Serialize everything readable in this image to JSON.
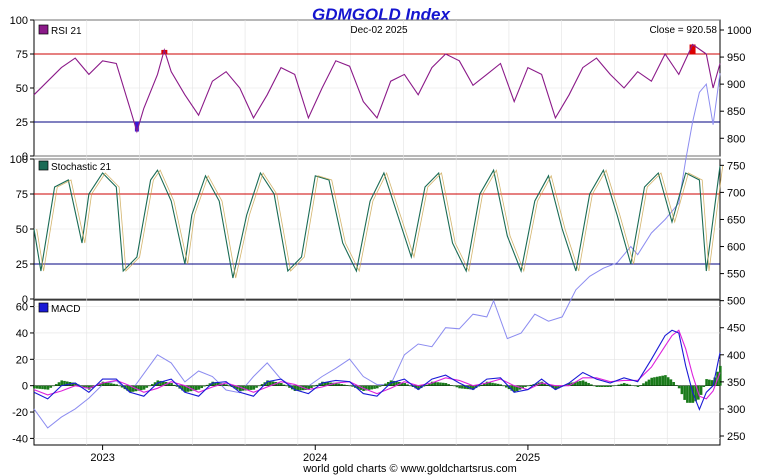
{
  "chart_data": {
    "type": "line",
    "title": "GDMGOLD Index",
    "date_label": "Dec-02  2025",
    "close_label": "Close = 920.58",
    "close_value": 920.58,
    "footer": "world gold charts © www.goldchartsrus.com",
    "x_labels": [
      "2023",
      "2024",
      "2025"
    ],
    "x_range": [
      "2022-09",
      "2025-12"
    ],
    "price": {
      "name": "GDMGOLD Index (right axis)",
      "color": "#8c8cf0",
      "y_ticks": [
        250,
        300,
        350,
        400,
        450,
        500,
        550,
        600,
        650,
        700,
        750,
        800,
        850,
        900,
        950,
        1000
      ],
      "y_range": [
        250,
        1000
      ],
      "points": [
        [
          0.0,
          300
        ],
        [
          0.02,
          265
        ],
        [
          0.04,
          285
        ],
        [
          0.06,
          300
        ],
        [
          0.08,
          320
        ],
        [
          0.1,
          345
        ],
        [
          0.12,
          352
        ],
        [
          0.14,
          330
        ],
        [
          0.16,
          365
        ],
        [
          0.18,
          400
        ],
        [
          0.2,
          385
        ],
        [
          0.22,
          350
        ],
        [
          0.24,
          370
        ],
        [
          0.26,
          360
        ],
        [
          0.28,
          335
        ],
        [
          0.3,
          330
        ],
        [
          0.32,
          360
        ],
        [
          0.34,
          385
        ],
        [
          0.36,
          355
        ],
        [
          0.38,
          340
        ],
        [
          0.4,
          342
        ],
        [
          0.42,
          360
        ],
        [
          0.44,
          375
        ],
        [
          0.46,
          392
        ],
        [
          0.48,
          360
        ],
        [
          0.5,
          345
        ],
        [
          0.52,
          345
        ],
        [
          0.54,
          400
        ],
        [
          0.56,
          420
        ],
        [
          0.58,
          415
        ],
        [
          0.6,
          450
        ],
        [
          0.62,
          448
        ],
        [
          0.64,
          475
        ],
        [
          0.66,
          470
        ],
        [
          0.67,
          500
        ],
        [
          0.69,
          430
        ],
        [
          0.71,
          440
        ],
        [
          0.73,
          475
        ],
        [
          0.75,
          462
        ],
        [
          0.77,
          470
        ],
        [
          0.79,
          520
        ],
        [
          0.81,
          545
        ],
        [
          0.83,
          560
        ],
        [
          0.85,
          570
        ],
        [
          0.87,
          600
        ],
        [
          0.88,
          585
        ],
        [
          0.9,
          625
        ],
        [
          0.92,
          650
        ],
        [
          0.94,
          680
        ],
        [
          0.95,
          760
        ],
        [
          0.96,
          830
        ],
        [
          0.97,
          885
        ],
        [
          0.98,
          900
        ],
        [
          0.99,
          825
        ],
        [
          1.0,
          920
        ]
      ]
    },
    "panels": [
      {
        "name": "RSI 21",
        "color": "#8b1a89",
        "y_ticks": [
          0,
          25,
          50,
          75,
          100
        ],
        "y_range": [
          0,
          100
        ],
        "overbought": 75,
        "oversold": 25,
        "points": [
          [
            0.0,
            45
          ],
          [
            0.02,
            55
          ],
          [
            0.04,
            65
          ],
          [
            0.06,
            72
          ],
          [
            0.08,
            60
          ],
          [
            0.1,
            70
          ],
          [
            0.12,
            68
          ],
          [
            0.14,
            35
          ],
          [
            0.15,
            18
          ],
          [
            0.16,
            35
          ],
          [
            0.18,
            60
          ],
          [
            0.19,
            78
          ],
          [
            0.2,
            62
          ],
          [
            0.22,
            45
          ],
          [
            0.24,
            30
          ],
          [
            0.26,
            55
          ],
          [
            0.28,
            62
          ],
          [
            0.3,
            50
          ],
          [
            0.32,
            28
          ],
          [
            0.34,
            45
          ],
          [
            0.36,
            65
          ],
          [
            0.38,
            60
          ],
          [
            0.4,
            28
          ],
          [
            0.42,
            50
          ],
          [
            0.44,
            70
          ],
          [
            0.46,
            66
          ],
          [
            0.48,
            40
          ],
          [
            0.5,
            28
          ],
          [
            0.52,
            55
          ],
          [
            0.54,
            60
          ],
          [
            0.56,
            45
          ],
          [
            0.58,
            65
          ],
          [
            0.6,
            75
          ],
          [
            0.62,
            70
          ],
          [
            0.64,
            52
          ],
          [
            0.66,
            60
          ],
          [
            0.68,
            68
          ],
          [
            0.7,
            40
          ],
          [
            0.72,
            65
          ],
          [
            0.74,
            60
          ],
          [
            0.76,
            28
          ],
          [
            0.78,
            45
          ],
          [
            0.8,
            65
          ],
          [
            0.82,
            72
          ],
          [
            0.84,
            60
          ],
          [
            0.86,
            50
          ],
          [
            0.88,
            62
          ],
          [
            0.9,
            55
          ],
          [
            0.92,
            75
          ],
          [
            0.94,
            60
          ],
          [
            0.96,
            82
          ],
          [
            0.98,
            75
          ],
          [
            0.99,
            50
          ],
          [
            1.0,
            68
          ]
        ]
      },
      {
        "name": "Stochastic 21",
        "color": "#1a6b55",
        "y_ticks": [
          0,
          25,
          50,
          75,
          100
        ],
        "y_range": [
          0,
          100
        ],
        "overbought": 75,
        "oversold": 25,
        "points": [
          [
            0.0,
            50
          ],
          [
            0.01,
            20
          ],
          [
            0.03,
            80
          ],
          [
            0.05,
            85
          ],
          [
            0.07,
            40
          ],
          [
            0.08,
            75
          ],
          [
            0.1,
            90
          ],
          [
            0.12,
            80
          ],
          [
            0.13,
            20
          ],
          [
            0.15,
            30
          ],
          [
            0.17,
            85
          ],
          [
            0.18,
            92
          ],
          [
            0.2,
            70
          ],
          [
            0.22,
            25
          ],
          [
            0.23,
            60
          ],
          [
            0.25,
            88
          ],
          [
            0.27,
            70
          ],
          [
            0.29,
            15
          ],
          [
            0.31,
            60
          ],
          [
            0.33,
            90
          ],
          [
            0.35,
            75
          ],
          [
            0.37,
            20
          ],
          [
            0.39,
            30
          ],
          [
            0.41,
            88
          ],
          [
            0.43,
            85
          ],
          [
            0.45,
            40
          ],
          [
            0.47,
            20
          ],
          [
            0.49,
            70
          ],
          [
            0.51,
            90
          ],
          [
            0.53,
            60
          ],
          [
            0.55,
            30
          ],
          [
            0.57,
            80
          ],
          [
            0.59,
            90
          ],
          [
            0.61,
            40
          ],
          [
            0.63,
            20
          ],
          [
            0.65,
            75
          ],
          [
            0.67,
            92
          ],
          [
            0.69,
            45
          ],
          [
            0.71,
            20
          ],
          [
            0.73,
            70
          ],
          [
            0.75,
            88
          ],
          [
            0.77,
            50
          ],
          [
            0.79,
            20
          ],
          [
            0.81,
            75
          ],
          [
            0.83,
            92
          ],
          [
            0.85,
            60
          ],
          [
            0.87,
            25
          ],
          [
            0.89,
            80
          ],
          [
            0.91,
            90
          ],
          [
            0.93,
            55
          ],
          [
            0.95,
            90
          ],
          [
            0.97,
            85
          ],
          [
            0.98,
            20
          ],
          [
            1.0,
            95
          ]
        ]
      },
      {
        "name": "MACD",
        "color": "#1a1ad6",
        "signal_color": "#dd22dd",
        "hist_color": "#1a7a1a",
        "y_ticks": [
          -40,
          -20,
          0,
          20,
          40,
          60
        ],
        "y_range": [
          -45,
          65
        ],
        "macd": [
          [
            0.0,
            -5
          ],
          [
            0.02,
            -10
          ],
          [
            0.04,
            0
          ],
          [
            0.06,
            2
          ],
          [
            0.08,
            -5
          ],
          [
            0.1,
            5
          ],
          [
            0.12,
            5
          ],
          [
            0.14,
            -5
          ],
          [
            0.16,
            -8
          ],
          [
            0.18,
            2
          ],
          [
            0.2,
            5
          ],
          [
            0.22,
            -5
          ],
          [
            0.24,
            -8
          ],
          [
            0.26,
            2
          ],
          [
            0.28,
            3
          ],
          [
            0.3,
            -5
          ],
          [
            0.32,
            -8
          ],
          [
            0.34,
            3
          ],
          [
            0.36,
            5
          ],
          [
            0.38,
            -3
          ],
          [
            0.4,
            -6
          ],
          [
            0.42,
            2
          ],
          [
            0.44,
            4
          ],
          [
            0.46,
            3
          ],
          [
            0.48,
            -6
          ],
          [
            0.5,
            -8
          ],
          [
            0.52,
            2
          ],
          [
            0.54,
            5
          ],
          [
            0.56,
            -3
          ],
          [
            0.58,
            5
          ],
          [
            0.6,
            8
          ],
          [
            0.62,
            2
          ],
          [
            0.64,
            -3
          ],
          [
            0.66,
            5
          ],
          [
            0.68,
            6
          ],
          [
            0.7,
            -5
          ],
          [
            0.72,
            -3
          ],
          [
            0.74,
            5
          ],
          [
            0.76,
            -3
          ],
          [
            0.78,
            2
          ],
          [
            0.8,
            10
          ],
          [
            0.82,
            5
          ],
          [
            0.84,
            2
          ],
          [
            0.86,
            6
          ],
          [
            0.88,
            3
          ],
          [
            0.9,
            20
          ],
          [
            0.92,
            38
          ],
          [
            0.93,
            42
          ],
          [
            0.94,
            40
          ],
          [
            0.95,
            15
          ],
          [
            0.96,
            -5
          ],
          [
            0.97,
            -18
          ],
          [
            0.98,
            -5
          ],
          [
            0.99,
            0
          ],
          [
            1.0,
            25
          ]
        ],
        "signal": [
          [
            0.0,
            -3
          ],
          [
            0.02,
            -7
          ],
          [
            0.04,
            -4
          ],
          [
            0.06,
            0
          ],
          [
            0.08,
            -2
          ],
          [
            0.1,
            2
          ],
          [
            0.12,
            4
          ],
          [
            0.14,
            0
          ],
          [
            0.16,
            -5
          ],
          [
            0.18,
            -2
          ],
          [
            0.2,
            3
          ],
          [
            0.22,
            0
          ],
          [
            0.24,
            -5
          ],
          [
            0.26,
            -1
          ],
          [
            0.28,
            2
          ],
          [
            0.3,
            -1
          ],
          [
            0.32,
            -5
          ],
          [
            0.34,
            -1
          ],
          [
            0.36,
            3
          ],
          [
            0.38,
            1
          ],
          [
            0.4,
            -3
          ],
          [
            0.42,
            -1
          ],
          [
            0.44,
            2
          ],
          [
            0.46,
            3
          ],
          [
            0.48,
            -2
          ],
          [
            0.5,
            -6
          ],
          [
            0.52,
            -2
          ],
          [
            0.54,
            3
          ],
          [
            0.56,
            0
          ],
          [
            0.58,
            2
          ],
          [
            0.6,
            6
          ],
          [
            0.62,
            4
          ],
          [
            0.64,
            0
          ],
          [
            0.66,
            2
          ],
          [
            0.68,
            5
          ],
          [
            0.7,
            0
          ],
          [
            0.72,
            -3
          ],
          [
            0.74,
            2
          ],
          [
            0.76,
            0
          ],
          [
            0.78,
            0
          ],
          [
            0.8,
            6
          ],
          [
            0.82,
            6
          ],
          [
            0.84,
            3
          ],
          [
            0.86,
            4
          ],
          [
            0.88,
            4
          ],
          [
            0.9,
            14
          ],
          [
            0.92,
            30
          ],
          [
            0.93,
            38
          ],
          [
            0.94,
            42
          ],
          [
            0.95,
            28
          ],
          [
            0.96,
            8
          ],
          [
            0.97,
            -8
          ],
          [
            0.98,
            -10
          ],
          [
            0.99,
            -4
          ],
          [
            1.0,
            10
          ]
        ]
      }
    ]
  }
}
